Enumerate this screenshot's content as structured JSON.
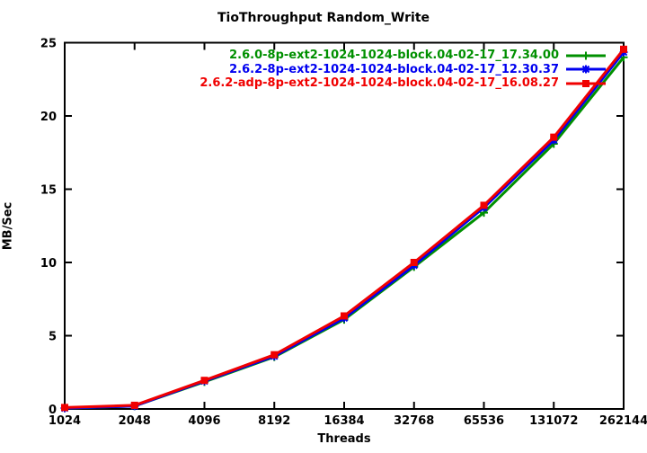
{
  "window": {
    "background": "#ffffff",
    "frame_color": "#000000",
    "text_color": "#000000"
  },
  "chart_data": {
    "type": "line",
    "title": "TioThroughput Random_Write",
    "xlabel": "Threads",
    "ylabel": "MB/Sec",
    "x_scale": "log2",
    "categories": [
      "1024",
      "2048",
      "4096",
      "8192",
      "16384",
      "32768",
      "65536",
      "131072",
      "262144"
    ],
    "x_values": [
      1024,
      2048,
      4096,
      8192,
      16384,
      32768,
      65536,
      131072,
      262144
    ],
    "ylim": [
      0,
      25
    ],
    "yticks": [
      0,
      5,
      10,
      15,
      20,
      25
    ],
    "grid": false,
    "legend_position": "top-right-inside",
    "series": [
      {
        "name": "2.6.0-8p-ext2-1024-1024-block.04-02-17_17.34.00",
        "color": "#009000",
        "marker": "plus",
        "values": [
          0.05,
          0.2,
          1.85,
          3.55,
          6.1,
          9.7,
          13.4,
          18.1,
          24.0
        ]
      },
      {
        "name": "2.6.2-8p-ext2-1024-1024-block.04-02-17_12.30.37",
        "color": "#0000f0",
        "marker": "asterisk",
        "values": [
          0.05,
          0.2,
          1.9,
          3.6,
          6.2,
          9.8,
          13.75,
          18.35,
          24.35
        ]
      },
      {
        "name": "2.6.2-adp-8p-ext2-1024-1024-block.04-02-17_16.08.27",
        "color": "#f00000",
        "marker": "square",
        "values": [
          0.1,
          0.25,
          1.95,
          3.7,
          6.35,
          10.0,
          13.9,
          18.55,
          24.55
        ]
      }
    ]
  }
}
